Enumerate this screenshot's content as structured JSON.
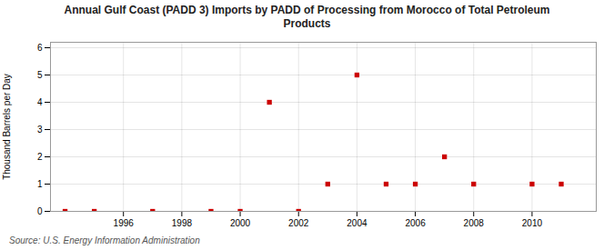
{
  "chart_data": {
    "type": "scatter",
    "title": "Annual Gulf Coast (PADD 3) Imports by PADD of Processing from Morocco of Total Petroleum\nProducts",
    "ylabel": "Thousand Barrels per Day",
    "source": "Source: U.S. Energy Information Administration",
    "x": [
      1994,
      1995,
      1997,
      1999,
      2000,
      2001,
      2002,
      2003,
      2004,
      2005,
      2006,
      2007,
      2008,
      2010,
      2011
    ],
    "values": [
      0,
      0,
      0,
      0,
      0,
      4,
      0,
      1,
      5,
      1,
      1,
      2,
      1,
      1,
      1
    ],
    "color": "#cc0000",
    "marker": "square",
    "xlim": [
      1993.5,
      2012.2
    ],
    "ylim": [
      0,
      6.2
    ],
    "xticks": [
      1996,
      1998,
      2000,
      2002,
      2004,
      2006,
      2008,
      2010
    ],
    "yticks": [
      0,
      1,
      2,
      3,
      4,
      5,
      6
    ],
    "grid": true
  }
}
